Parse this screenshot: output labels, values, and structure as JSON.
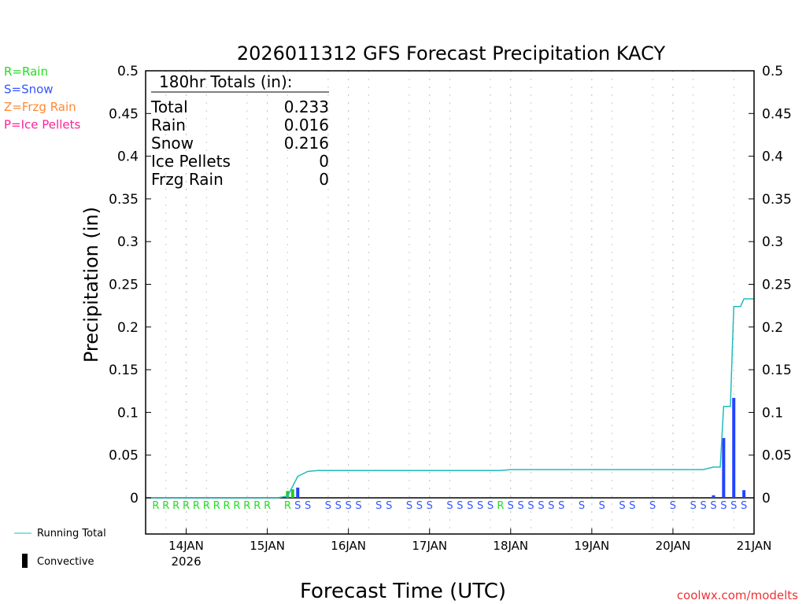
{
  "chart_data": {
    "type": "bar+line",
    "title": "2026011312 GFS Forecast Precipitation KACY",
    "xlabel": "Forecast Time (UTC)",
    "ylabel": "Precipitation (in)",
    "ylim": [
      0,
      0.5
    ],
    "yticks": [
      "0",
      "0.05",
      "0.1",
      "0.15",
      "0.2",
      "0.25",
      "0.3",
      "0.35",
      "0.4",
      "0.45",
      "0.5"
    ],
    "xlim_hours": [
      0,
      180
    ],
    "xticks": [
      {
        "h": 12,
        "label": "14JAN",
        "sub": "2026"
      },
      {
        "h": 36,
        "label": "15JAN"
      },
      {
        "h": 60,
        "label": "16JAN"
      },
      {
        "h": 84,
        "label": "17JAN"
      },
      {
        "h": 108,
        "label": "18JAN"
      },
      {
        "h": 132,
        "label": "19JAN"
      },
      {
        "h": 156,
        "label": "20JAN"
      },
      {
        "h": 180,
        "label": "21JAN"
      }
    ],
    "legend_types": [
      {
        "text": "R=Rain",
        "color": "#22dd22"
      },
      {
        "text": "S=Snow",
        "color": "#3355ff"
      },
      {
        "text": "Z=Frzg Rain",
        "color": "#ff8833"
      },
      {
        "text": "P=Ice Pellets",
        "color": "#ff2299"
      }
    ],
    "legend_lines": {
      "running_total": "Running Total",
      "convective": "Convective"
    },
    "totals": {
      "header": "180hr Totals (in):",
      "rows": [
        [
          "Total",
          "0.233"
        ],
        [
          "Rain",
          "0.016"
        ],
        [
          "Snow",
          "0.216"
        ],
        [
          "Ice Pellets",
          "0"
        ],
        [
          "Frzg Rain",
          "0"
        ]
      ]
    },
    "running_total": [
      [
        0,
        0
      ],
      [
        39,
        0
      ],
      [
        42,
        0.002
      ],
      [
        45,
        0.025
      ],
      [
        48,
        0.031
      ],
      [
        51,
        0.032
      ],
      [
        105,
        0.032
      ],
      [
        108,
        0.033
      ],
      [
        165,
        0.033
      ],
      [
        168,
        0.036
      ],
      [
        170,
        0.036
      ],
      [
        171,
        0.107
      ],
      [
        173,
        0.107
      ],
      [
        174,
        0.224
      ],
      [
        176,
        0.224
      ],
      [
        177,
        0.233
      ],
      [
        180,
        0.233
      ]
    ],
    "bars": [
      [
        42,
        0.008,
        "#22cc22"
      ],
      [
        43.5,
        0.01,
        "#22cc22"
      ],
      [
        45,
        0.012,
        "#2244ff"
      ],
      [
        168,
        0.003,
        "#2244ff"
      ],
      [
        171,
        0.07,
        "#2244ff"
      ],
      [
        174,
        0.117,
        "#2244ff"
      ],
      [
        177,
        0.009,
        "#2244ff"
      ]
    ],
    "ptype": "RRRRRRRRRRRR_RSS_SSSS_SS_SSS_SSSSSRSSSSSS_S_S_SS_S_S_SSSSSS",
    "credit": "coolwx.com/modelts"
  }
}
